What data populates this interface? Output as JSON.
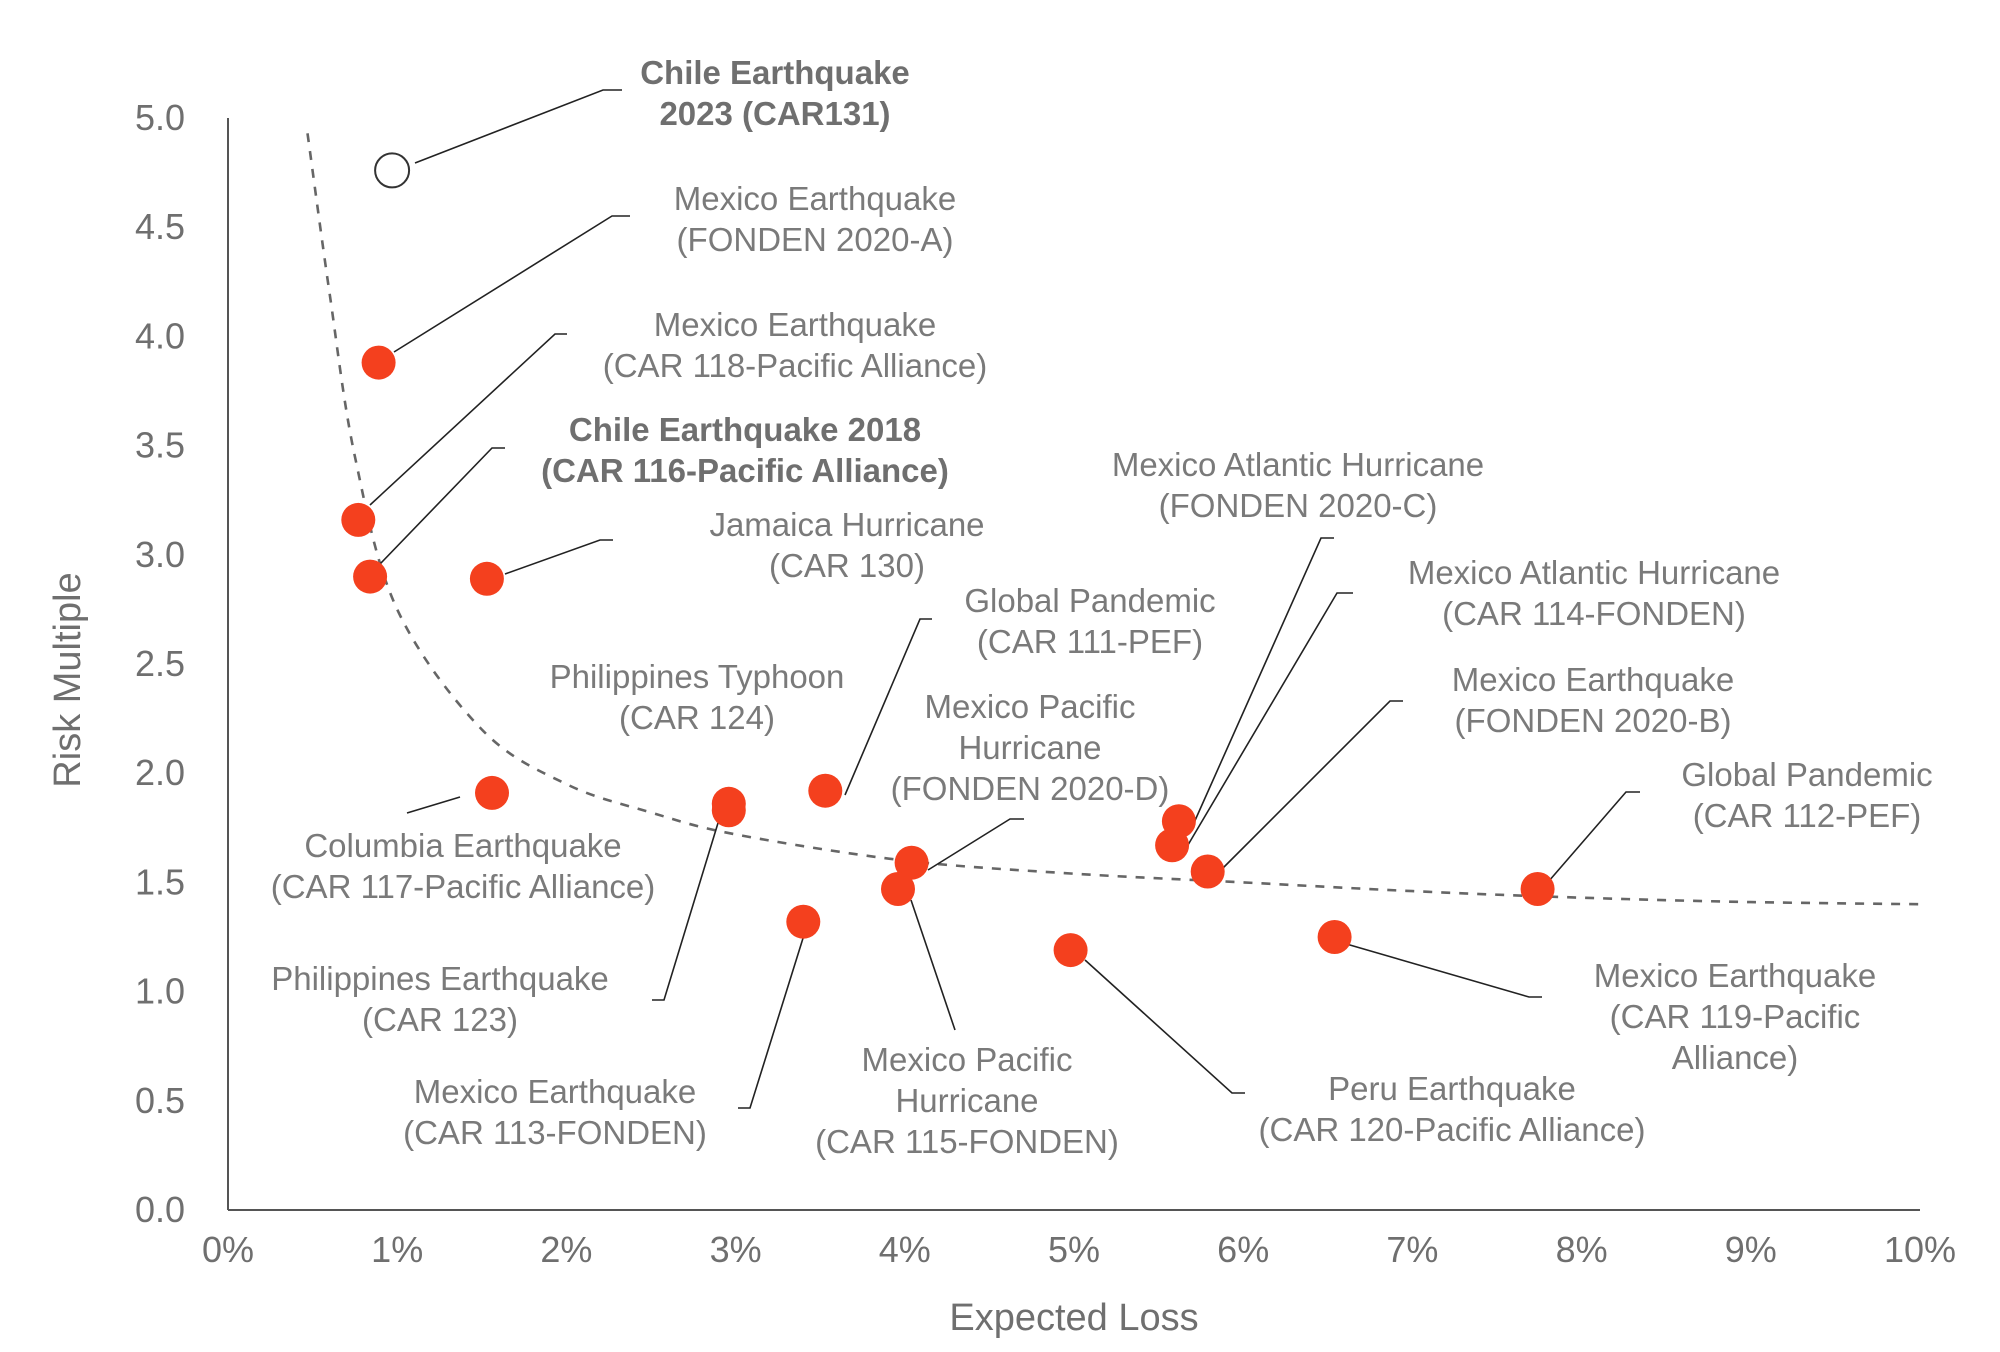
{
  "chart_data": {
    "type": "scatter",
    "xlabel": "Expected Loss",
    "ylabel": "Risk Multiple",
    "xlim": [
      0,
      10
    ],
    "ylim": [
      0,
      5
    ],
    "x_ticks": [
      "0%",
      "1%",
      "2%",
      "3%",
      "4%",
      "5%",
      "6%",
      "7%",
      "8%",
      "9%",
      "10%"
    ],
    "y_ticks": [
      "0.0",
      "0.5",
      "1.0",
      "1.5",
      "2.0",
      "2.5",
      "3.0",
      "3.5",
      "4.0",
      "4.5",
      "5.0"
    ],
    "point_color": "#f4401e",
    "highlight_color": "#ffffff",
    "trend_color": "#666666",
    "trendline": {
      "style": "dashed",
      "points": [
        [
          0.47,
          4.93
        ],
        [
          0.6,
          4.2
        ],
        [
          0.75,
          3.45
        ],
        [
          1.0,
          2.75
        ],
        [
          1.5,
          2.2
        ],
        [
          2.0,
          1.95
        ],
        [
          2.5,
          1.82
        ],
        [
          3.0,
          1.72
        ],
        [
          4.0,
          1.6
        ],
        [
          5.0,
          1.54
        ],
        [
          6.0,
          1.5
        ],
        [
          7.0,
          1.46
        ],
        [
          8.0,
          1.43
        ],
        [
          9.0,
          1.41
        ],
        [
          10.0,
          1.4
        ]
      ]
    },
    "points": [
      {
        "id": "car131",
        "x": 0.97,
        "y": 4.76,
        "highlight": true,
        "bold": true,
        "label": [
          "Chile Earthquake",
          "2023 (CAR131)"
        ]
      },
      {
        "id": "fonden2020a",
        "x": 0.89,
        "y": 3.88,
        "label": [
          "Mexico Earthquake",
          "(FONDEN 2020-A)"
        ]
      },
      {
        "id": "car118",
        "x": 0.77,
        "y": 3.16,
        "label": [
          "Mexico Earthquake",
          "(CAR 118-Pacific Alliance)"
        ]
      },
      {
        "id": "car116",
        "x": 0.84,
        "y": 2.9,
        "bold": true,
        "label": [
          "Chile Earthquake 2018",
          "(CAR 116-Pacific Alliance)"
        ]
      },
      {
        "id": "car130",
        "x": 1.53,
        "y": 2.89,
        "label": [
          "Jamaica Hurricane",
          "(CAR 130)"
        ]
      },
      {
        "id": "car117",
        "x": 1.56,
        "y": 1.91,
        "label": [
          "Columbia Earthquake",
          "(CAR 117-Pacific Alliance)"
        ]
      },
      {
        "id": "car124",
        "x": 2.96,
        "y": 1.86,
        "label": [
          "Philippines Typhoon",
          "(CAR 124)"
        ]
      },
      {
        "id": "car123",
        "x": 2.96,
        "y": 1.83,
        "label": [
          "Philippines Earthquake",
          "(CAR 123)"
        ]
      },
      {
        "id": "car111",
        "x": 3.53,
        "y": 1.92,
        "label": [
          "Global Pandemic",
          "(CAR 111-PEF)"
        ]
      },
      {
        "id": "car113",
        "x": 3.4,
        "y": 1.32,
        "label": [
          "Mexico Earthquake",
          "(CAR 113-FONDEN)"
        ]
      },
      {
        "id": "fonden2020d",
        "x": 4.04,
        "y": 1.59,
        "label": [
          "Mexico Pacific",
          "Hurricane",
          "(FONDEN 2020-D)"
        ]
      },
      {
        "id": "car115",
        "x": 3.96,
        "y": 1.47,
        "label": [
          "Mexico Pacific",
          "Hurricane",
          "(CAR 115-FONDEN)"
        ]
      },
      {
        "id": "car120",
        "x": 4.98,
        "y": 1.19,
        "label": [
          "Peru Earthquake",
          "(CAR 120-Pacific Alliance)"
        ]
      },
      {
        "id": "fonden2020c",
        "x": 5.62,
        "y": 1.78,
        "label": [
          "Mexico Atlantic Hurricane",
          "(FONDEN 2020-C)"
        ]
      },
      {
        "id": "car114",
        "x": 5.58,
        "y": 1.67,
        "label": [
          "Mexico Atlantic Hurricane",
          "(CAR 114-FONDEN)"
        ]
      },
      {
        "id": "fonden2020b",
        "x": 5.79,
        "y": 1.55,
        "label": [
          "Mexico Earthquake",
          "(FONDEN 2020-B)"
        ]
      },
      {
        "id": "car119",
        "x": 6.54,
        "y": 1.25,
        "label": [
          "Mexico Earthquake",
          "(CAR 119-Pacific",
          "Alliance)"
        ]
      },
      {
        "id": "car112",
        "x": 7.74,
        "y": 1.47,
        "label": [
          "Global Pandemic",
          "(CAR 112-PEF)"
        ]
      }
    ]
  }
}
